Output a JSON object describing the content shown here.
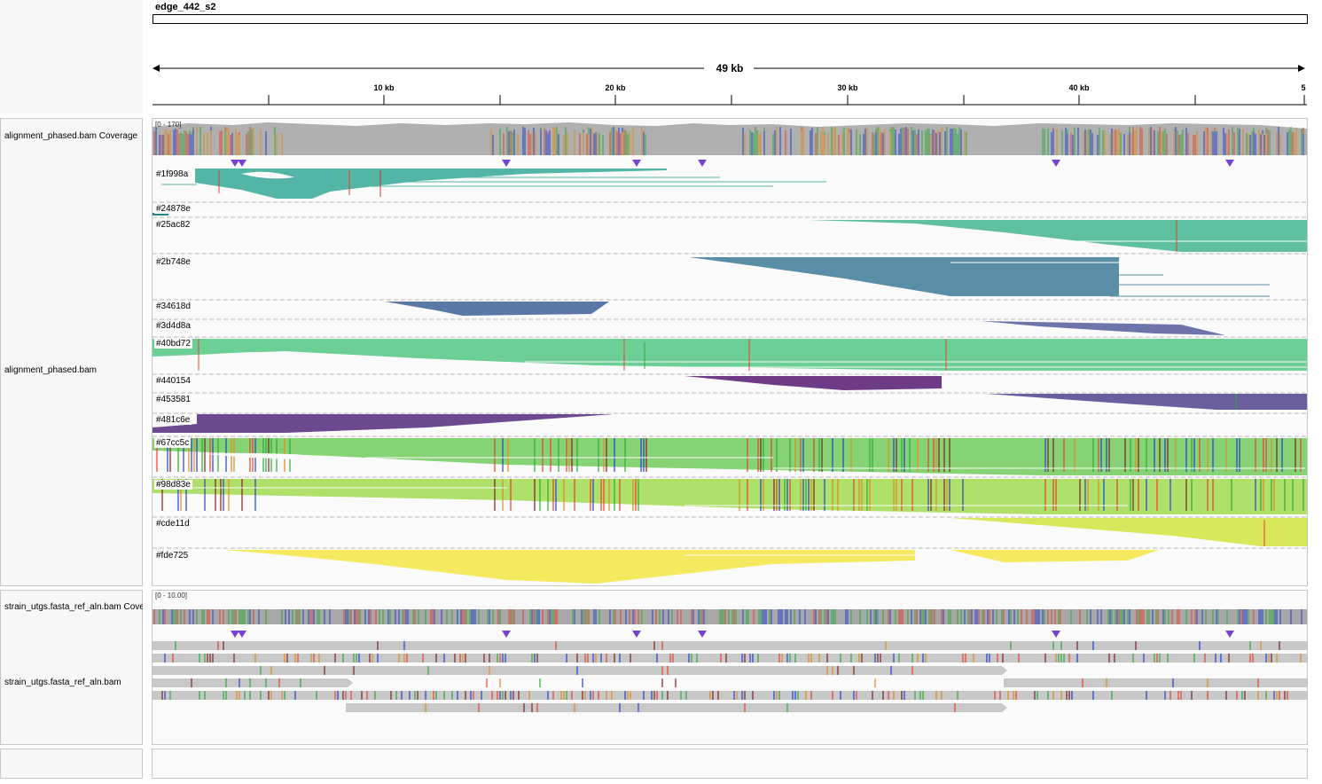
{
  "header": {
    "contig": "edge_442_s2",
    "span_label": "49 kb",
    "ticks": [
      "10 kb",
      "20 kb",
      "30 kb",
      "40 kb",
      "5"
    ]
  },
  "tracks": {
    "coverage1_name": "alignment_phased.bam Coverage",
    "coverage1_range": "[0 - 170]",
    "alignment1_name": "alignment_phased.bam",
    "coverage2_name": "strain_utgs.fasta_ref_aln.bam Coverage",
    "coverage2_range": "[0 - 10.00]",
    "alignment2_name": "strain_utgs.fasta_ref_aln.bam"
  },
  "groups": [
    {
      "label": "#1f998a",
      "color": "#52b5a5"
    },
    {
      "label": "#24878e",
      "color": "#24878e"
    },
    {
      "label": "#25ac82",
      "color": "#5ec0a0"
    },
    {
      "label": "#2b748e",
      "color": "#5a8ea6"
    },
    {
      "label": "#34618d",
      "color": "#5a78a6"
    },
    {
      "label": "#3d4d8a",
      "color": "#6c74aa"
    },
    {
      "label": "#40bd72",
      "color": "#6ccf96"
    },
    {
      "label": "#440154",
      "color": "#6e3c86"
    },
    {
      "label": "#453581",
      "color": "#6a5e9e"
    },
    {
      "label": "#481c6e",
      "color": "#6d4a90"
    },
    {
      "label": "#67cc5c",
      "color": "#86d376"
    },
    {
      "label": "#98d83e",
      "color": "#aee06a"
    },
    {
      "label": "#cde11d",
      "color": "#d9e75a"
    },
    {
      "label": "#fde725",
      "color": "#f5e960"
    }
  ]
}
